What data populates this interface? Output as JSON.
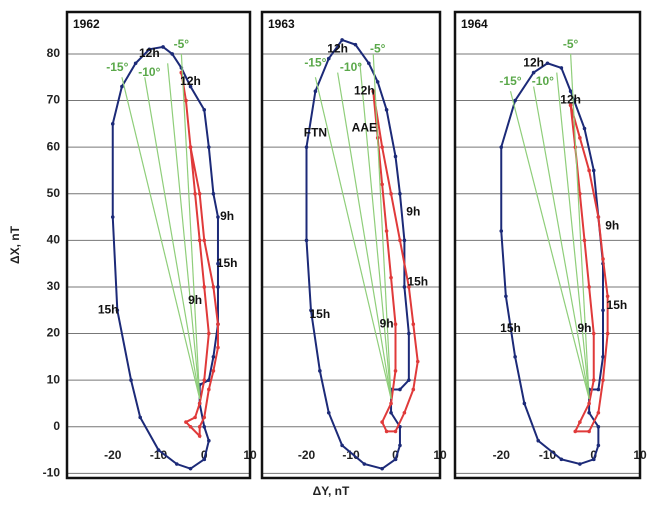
{
  "chart_data": [
    {
      "type": "line",
      "title": "1962",
      "ylabel": "ΔX, nT",
      "xlim": [
        -30,
        10
      ],
      "ylim": [
        -11,
        89
      ],
      "xticks": [
        -20,
        -10,
        0,
        10
      ],
      "yticks": [
        -10,
        0,
        10,
        20,
        30,
        40,
        50,
        60,
        70,
        80
      ],
      "ytick_labels": true,
      "grid": true,
      "series": [
        {
          "color": "#1c2a78",
          "markers": true,
          "x": [
            0,
            -3,
            -6,
            -10,
            -14,
            -16,
            -19,
            -20,
            -20,
            -18,
            -15,
            -12,
            -9,
            -7,
            -5,
            -3,
            0,
            1,
            2,
            3,
            3,
            3,
            3,
            2,
            1,
            -1,
            -1,
            0,
            1,
            0
          ],
          "values": [
            -7,
            -9,
            -8,
            -5,
            2,
            10,
            25,
            45,
            65,
            73,
            78,
            81,
            81.5,
            80,
            77,
            73,
            68,
            60,
            50,
            45,
            35,
            30,
            22,
            15,
            10,
            9,
            5,
            0,
            -3,
            -7
          ]
        },
        {
          "color": "#e03a3a",
          "markers": true,
          "x": [
            -5,
            -4,
            -3,
            -2,
            -1,
            0,
            1,
            0,
            -1,
            -2,
            -4,
            -3,
            -1,
            -1,
            0,
            1,
            2,
            3,
            3,
            2,
            0,
            -1,
            -3,
            -4,
            -5
          ],
          "values": [
            76,
            70,
            60,
            50,
            40,
            30,
            20,
            10,
            5,
            2,
            1,
            0,
            -2,
            0,
            2,
            8,
            12,
            17,
            22,
            30,
            40,
            50,
            60,
            70,
            76
          ]
        },
        {
          "color": "#8fce7a",
          "x": [
            -1,
            -18
          ],
          "values": [
            6,
            75
          ]
        },
        {
          "color": "#8fce7a",
          "x": [
            -1,
            -13
          ],
          "values": [
            6,
            75
          ]
        },
        {
          "color": "#8fce7a",
          "x": [
            -1,
            -8
          ],
          "values": [
            6,
            78
          ]
        },
        {
          "color": "#8fce7a",
          "x": [
            -1,
            -5
          ],
          "values": [
            6,
            80
          ]
        }
      ],
      "annotations": [
        {
          "text": "12h",
          "x": -12,
          "y": 80,
          "color": "#111"
        },
        {
          "text": "12h",
          "x": -3,
          "y": 74,
          "color": "#111"
        },
        {
          "text": "9h",
          "x": 5,
          "y": 45,
          "color": "#111"
        },
        {
          "text": "15h",
          "x": 5,
          "y": 35,
          "color": "#111"
        },
        {
          "text": "9h",
          "x": -2,
          "y": 27,
          "color": "#111"
        },
        {
          "text": "15h",
          "x": -21,
          "y": 25,
          "color": "#111"
        },
        {
          "text": "-15°",
          "x": -19,
          "y": 77,
          "color": "#5aa84a"
        },
        {
          "text": "-10°",
          "x": -12,
          "y": 76,
          "color": "#5aa84a"
        },
        {
          "text": "-5°",
          "x": -5,
          "y": 82,
          "color": "#5aa84a"
        }
      ]
    },
    {
      "type": "line",
      "title": "1963",
      "xlabel": "ΔY, nT",
      "xlim": [
        -30,
        10
      ],
      "ylim": [
        -11,
        89
      ],
      "xticks": [
        -20,
        -10,
        0,
        10
      ],
      "yticks": [
        -10,
        0,
        10,
        20,
        30,
        40,
        50,
        60,
        70,
        80
      ],
      "ytick_labels": false,
      "grid": true,
      "series": [
        {
          "color": "#1c2a78",
          "markers": true,
          "x": [
            0,
            -3,
            -7,
            -12,
            -15,
            -17,
            -19,
            -20,
            -20,
            -18,
            -15,
            -12,
            -9,
            -6,
            -4,
            -2,
            0,
            1,
            2,
            2,
            3,
            3,
            1,
            -1,
            -1,
            1,
            1,
            0
          ],
          "values": [
            -7,
            -9,
            -8,
            -4,
            3,
            12,
            25,
            40,
            60,
            72,
            79,
            83,
            82,
            78,
            74,
            68,
            58,
            50,
            40,
            30,
            20,
            10,
            8,
            8,
            3,
            0,
            -4,
            -7
          ]
        },
        {
          "color": "#e03a3a",
          "markers": true,
          "x": [
            -5,
            -4,
            -3,
            -2,
            -1,
            0,
            0,
            -1,
            -3,
            -2,
            0,
            2,
            4,
            5,
            4,
            3,
            1,
            -1,
            -3,
            -5
          ],
          "values": [
            72,
            62,
            52,
            42,
            32,
            22,
            12,
            5,
            1,
            -1,
            -1,
            3,
            8,
            14,
            22,
            30,
            40,
            50,
            60,
            72
          ]
        },
        {
          "color": "#8fce7a",
          "x": [
            -1,
            -18
          ],
          "values": [
            6,
            75
          ]
        },
        {
          "color": "#8fce7a",
          "x": [
            -1,
            -13
          ],
          "values": [
            6,
            76
          ]
        },
        {
          "color": "#8fce7a",
          "x": [
            -1,
            -8
          ],
          "values": [
            6,
            78
          ]
        },
        {
          "color": "#8fce7a",
          "x": [
            -1,
            -5
          ],
          "values": [
            6,
            80
          ]
        }
      ],
      "annotations": [
        {
          "text": "12h",
          "x": -13,
          "y": 81,
          "color": "#111"
        },
        {
          "text": "12h",
          "x": -7,
          "y": 72,
          "color": "#111"
        },
        {
          "text": "FTN",
          "x": -18,
          "y": 63,
          "color": "#111"
        },
        {
          "text": "AAE",
          "x": -7,
          "y": 64,
          "color": "#111"
        },
        {
          "text": "9h",
          "x": 4,
          "y": 46,
          "color": "#111"
        },
        {
          "text": "15h",
          "x": 5,
          "y": 31,
          "color": "#111"
        },
        {
          "text": "9h",
          "x": -2,
          "y": 22,
          "color": "#111"
        },
        {
          "text": "15h",
          "x": -17,
          "y": 24,
          "color": "#111"
        },
        {
          "text": "-15°",
          "x": -18,
          "y": 78,
          "color": "#5aa84a"
        },
        {
          "text": "-10°",
          "x": -10,
          "y": 77,
          "color": "#5aa84a"
        },
        {
          "text": "-5°",
          "x": -4,
          "y": 81,
          "color": "#5aa84a"
        }
      ]
    },
    {
      "type": "line",
      "title": "1964",
      "xlim": [
        -30,
        10
      ],
      "ylim": [
        -11,
        89
      ],
      "xticks": [
        -20,
        -10,
        0,
        10
      ],
      "yticks": [
        -10,
        0,
        10,
        20,
        30,
        40,
        50,
        60,
        70,
        80
      ],
      "ytick_labels": false,
      "grid": true,
      "series": [
        {
          "color": "#1c2a78",
          "markers": true,
          "x": [
            0,
            -3,
            -7,
            -12,
            -15,
            -17,
            -19,
            -20,
            -20,
            -17,
            -13,
            -10,
            -7,
            -5,
            -2,
            0,
            1,
            2,
            2,
            2,
            1,
            -1,
            -1,
            1,
            1,
            0
          ],
          "values": [
            -7,
            -8,
            -7,
            -3,
            5,
            15,
            28,
            42,
            60,
            70,
            76,
            78,
            77,
            72,
            64,
            55,
            45,
            35,
            25,
            15,
            8,
            8,
            3,
            0,
            -4,
            -7
          ]
        },
        {
          "color": "#e03a3a",
          "markers": true,
          "x": [
            -5,
            -4,
            -3,
            -2,
            -1,
            0,
            0,
            -1,
            -3,
            -4,
            -1,
            1,
            2,
            3,
            3,
            2,
            1,
            -1,
            -3,
            -5
          ],
          "values": [
            69,
            60,
            50,
            40,
            30,
            20,
            10,
            5,
            1,
            -1,
            -1,
            3,
            10,
            20,
            28,
            36,
            45,
            55,
            62,
            69
          ]
        },
        {
          "color": "#8fce7a",
          "x": [
            -1,
            -18
          ],
          "values": [
            6,
            72
          ]
        },
        {
          "color": "#8fce7a",
          "x": [
            -1,
            -13
          ],
          "values": [
            6,
            73
          ]
        },
        {
          "color": "#8fce7a",
          "x": [
            -1,
            -8
          ],
          "values": [
            6,
            76
          ]
        },
        {
          "color": "#8fce7a",
          "x": [
            -1,
            -5
          ],
          "values": [
            6,
            80
          ]
        }
      ],
      "annotations": [
        {
          "text": "12h",
          "x": -13,
          "y": 78,
          "color": "#111"
        },
        {
          "text": "12h",
          "x": -5,
          "y": 70,
          "color": "#111"
        },
        {
          "text": "9h",
          "x": 4,
          "y": 43,
          "color": "#111"
        },
        {
          "text": "15h",
          "x": 5,
          "y": 26,
          "color": "#111"
        },
        {
          "text": "9h",
          "x": -2,
          "y": 21,
          "color": "#111"
        },
        {
          "text": "15h",
          "x": -18,
          "y": 21,
          "color": "#111"
        },
        {
          "text": "-15°",
          "x": -18,
          "y": 74,
          "color": "#5aa84a"
        },
        {
          "text": "-10°",
          "x": -11,
          "y": 74,
          "color": "#5aa84a"
        },
        {
          "text": "-5°",
          "x": -5,
          "y": 82,
          "color": "#5aa84a"
        }
      ]
    }
  ]
}
